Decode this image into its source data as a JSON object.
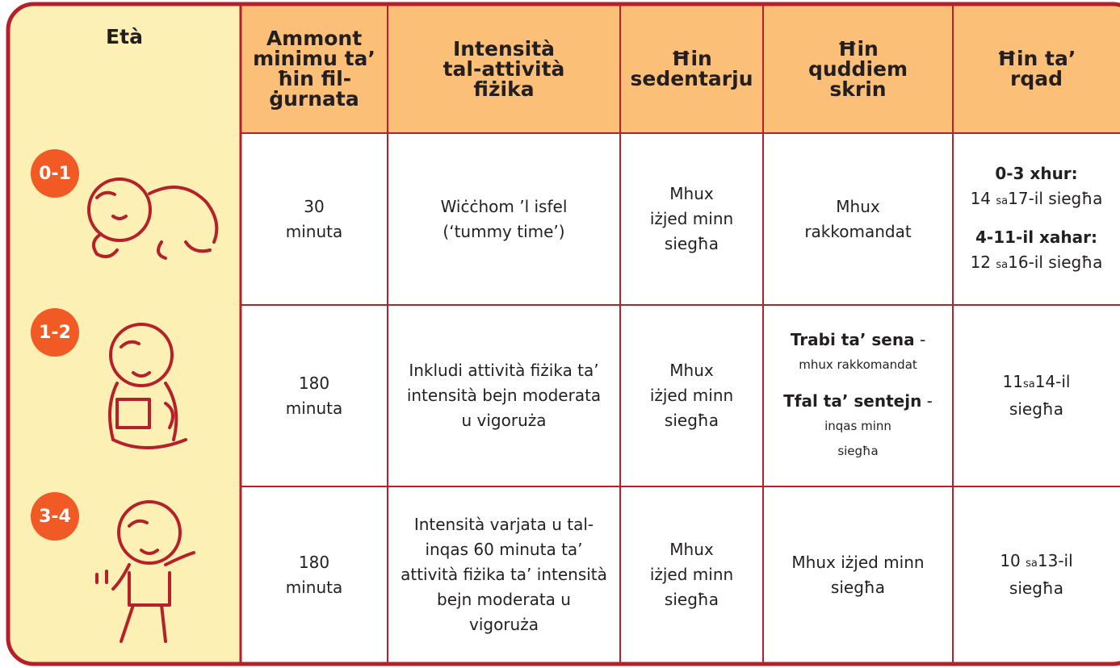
{
  "header": {
    "age": "Età",
    "columns": [
      "Ammont minimu ta’ ħin fil-ġurnata",
      "Intensità tal-attività fiżika",
      "Ħin sedentarju",
      "Ħin quddiem skrin",
      "Ħin ta’ rqad"
    ]
  },
  "rows": [
    {
      "age": "0-1",
      "minimum": "30 minuta",
      "intensity": "Wiċċhom ’l isfel (‘tummy time’)",
      "sedentary": "Mhux iżjed minn siegħa",
      "screen": [
        "Mhux rakkomandat"
      ],
      "sleep": [
        "0-3 xhur:",
        "14",
        "sa",
        "17-il siegħa",
        "4-11-il xahar:",
        "12",
        "sa",
        "16-il siegħa"
      ]
    },
    {
      "age": "1-2",
      "minimum": "180 minuta",
      "intensity": "Inkludi attività fiżika ta’ intensità bejn moderata u vigoruża",
      "sedentary": "Mhux iżjed minn siegħa",
      "screen": [
        "Trabi ta’ sena",
        "-",
        "mhux rakkomandat",
        "Tfal ta’ sentejn",
        "-",
        "inqas minn siegħa"
      ],
      "sleep": [
        "11",
        "sa",
        "14-il siegħa"
      ]
    },
    {
      "age": "3-4",
      "minimum": "180 minuta",
      "intensity": "Intensità varjata u tal-inqas 60 minuta ta’ attività fiżika ta’ intensità bejn moderata u vigoruża",
      "sedentary": "Mhux iżjed minn siegħa",
      "screen": [
        "Mhux iżjed minn siegħa"
      ],
      "sleep": [
        "10",
        "sa",
        "13-il siegħa"
      ]
    }
  ]
}
